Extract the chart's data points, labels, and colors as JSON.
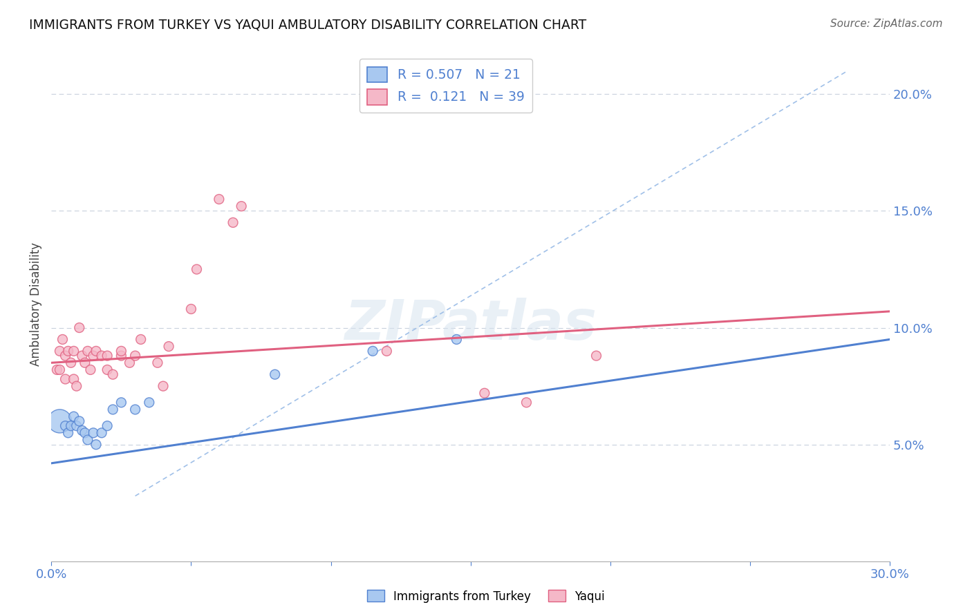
{
  "title": "IMMIGRANTS FROM TURKEY VS YAQUI AMBULATORY DISABILITY CORRELATION CHART",
  "source": "Source: ZipAtlas.com",
  "ylabel": "Ambulatory Disability",
  "x_min": 0.0,
  "x_max": 0.3,
  "y_min": 0.0,
  "y_max": 0.22,
  "legend_r_blue": "0.507",
  "legend_n_blue": "21",
  "legend_r_pink": "0.121",
  "legend_n_pink": "39",
  "blue_color": "#A8C8F0",
  "pink_color": "#F5B8C8",
  "blue_line_color": "#5080D0",
  "pink_line_color": "#E06080",
  "dashed_line_color": "#A0C0E8",
  "blue_scatter_x": [
    0.003,
    0.005,
    0.006,
    0.007,
    0.008,
    0.009,
    0.01,
    0.011,
    0.012,
    0.013,
    0.015,
    0.016,
    0.018,
    0.02,
    0.022,
    0.025,
    0.03,
    0.035,
    0.08,
    0.115,
    0.145
  ],
  "blue_scatter_y": [
    0.06,
    0.058,
    0.055,
    0.058,
    0.062,
    0.058,
    0.06,
    0.056,
    0.055,
    0.052,
    0.055,
    0.05,
    0.055,
    0.058,
    0.065,
    0.068,
    0.065,
    0.068,
    0.08,
    0.09,
    0.095
  ],
  "blue_scatter_sizes": [
    600,
    100,
    100,
    100,
    100,
    100,
    100,
    100,
    100,
    100,
    100,
    100,
    100,
    100,
    100,
    100,
    100,
    100,
    100,
    100,
    100
  ],
  "pink_scatter_x": [
    0.002,
    0.003,
    0.003,
    0.004,
    0.005,
    0.005,
    0.006,
    0.007,
    0.008,
    0.008,
    0.009,
    0.01,
    0.011,
    0.012,
    0.013,
    0.014,
    0.015,
    0.016,
    0.018,
    0.02,
    0.02,
    0.022,
    0.025,
    0.025,
    0.028,
    0.03,
    0.032,
    0.038,
    0.04,
    0.042,
    0.05,
    0.052,
    0.06,
    0.065,
    0.068,
    0.12,
    0.155,
    0.17,
    0.195
  ],
  "pink_scatter_y": [
    0.082,
    0.09,
    0.082,
    0.095,
    0.088,
    0.078,
    0.09,
    0.085,
    0.078,
    0.09,
    0.075,
    0.1,
    0.088,
    0.085,
    0.09,
    0.082,
    0.088,
    0.09,
    0.088,
    0.082,
    0.088,
    0.08,
    0.088,
    0.09,
    0.085,
    0.088,
    0.095,
    0.085,
    0.075,
    0.092,
    0.108,
    0.125,
    0.155,
    0.145,
    0.152,
    0.09,
    0.072,
    0.068,
    0.088
  ],
  "pink_scatter_sizes": [
    100,
    100,
    100,
    100,
    100,
    100,
    100,
    100,
    100,
    100,
    100,
    100,
    100,
    100,
    100,
    100,
    100,
    100,
    100,
    100,
    100,
    100,
    100,
    100,
    100,
    100,
    100,
    100,
    100,
    100,
    100,
    100,
    100,
    100,
    100,
    100,
    100,
    100,
    100
  ],
  "blue_trendline_x": [
    0.0,
    0.3
  ],
  "blue_trendline_y": [
    0.042,
    0.095
  ],
  "pink_trendline_x": [
    0.0,
    0.3
  ],
  "pink_trendline_y": [
    0.085,
    0.107
  ],
  "dashed_line_x": [
    0.03,
    0.285
  ],
  "dashed_line_y": [
    0.028,
    0.21
  ]
}
